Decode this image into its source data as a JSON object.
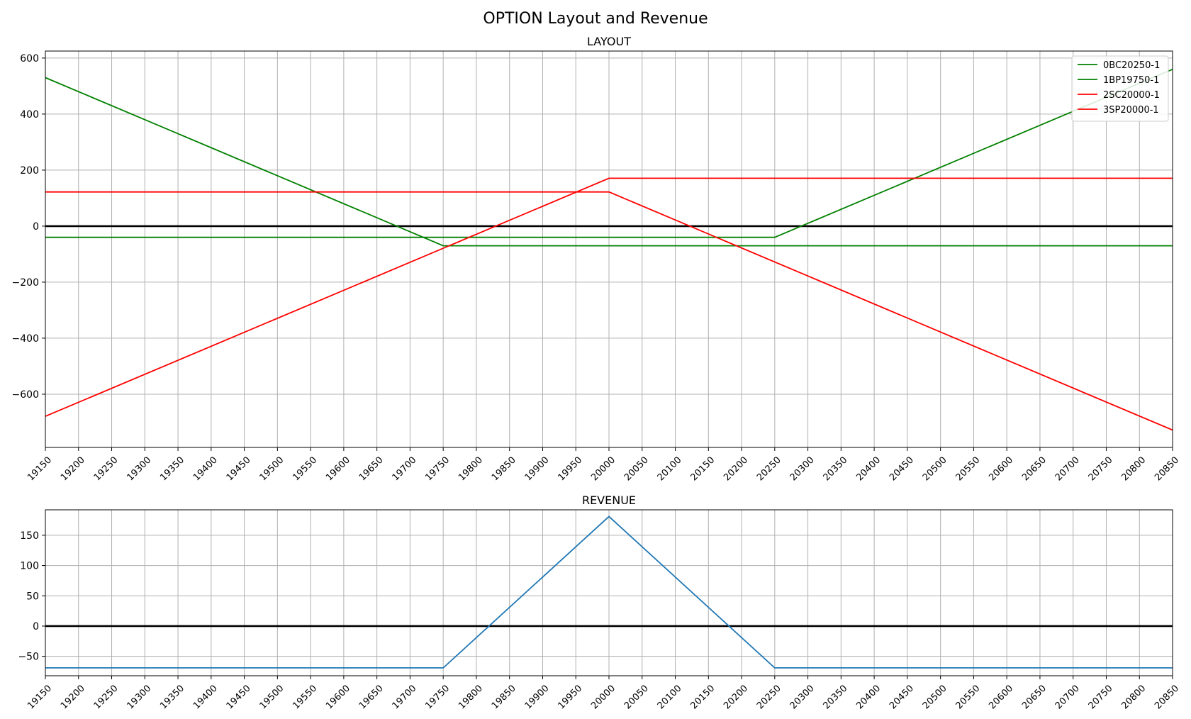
{
  "figure": {
    "title": "OPTION Layout and Revenue"
  },
  "chart_data": [
    {
      "type": "line",
      "title": "LAYOUT",
      "xlabel": "",
      "ylabel": "",
      "xlim": [
        19150,
        20850
      ],
      "ylim": [
        -790,
        625
      ],
      "grid": true,
      "legend": "top-right",
      "x_ticks": [
        19150,
        19200,
        19250,
        19300,
        19350,
        19400,
        19450,
        19500,
        19550,
        19600,
        19650,
        19700,
        19750,
        19800,
        19850,
        19900,
        19950,
        20000,
        20050,
        20100,
        20150,
        20200,
        20250,
        20300,
        20350,
        20400,
        20450,
        20500,
        20550,
        20600,
        20650,
        20700,
        20750,
        20800,
        20850
      ],
      "y_ticks": [
        -600,
        -400,
        -200,
        0,
        200,
        400,
        600
      ],
      "y_tick_labels": [
        "−600",
        "−400",
        "−200",
        "0",
        "200",
        "400",
        "600"
      ],
      "baseline": 0,
      "series": [
        {
          "name": "0BC20250-1",
          "color": "#008000",
          "x": [
            19150,
            20250,
            20850
          ],
          "y": [
            -40,
            -40,
            560
          ]
        },
        {
          "name": "1BP19750-1",
          "color": "#008000",
          "x": [
            19150,
            19750,
            20850
          ],
          "y": [
            530,
            -70,
            -70
          ]
        },
        {
          "name": "2SC20000-1",
          "color": "#ff0000",
          "x": [
            19150,
            20000,
            20850
          ],
          "y": [
            122,
            122,
            -728
          ]
        },
        {
          "name": "3SP20000-1",
          "color": "#ff0000",
          "x": [
            19150,
            20000,
            20850
          ],
          "y": [
            -679,
            171,
            171
          ]
        }
      ]
    },
    {
      "type": "line",
      "title": "REVENUE",
      "xlabel": "",
      "ylabel": "",
      "xlim": [
        19150,
        20850
      ],
      "ylim": [
        -82,
        192
      ],
      "grid": true,
      "x_ticks": [
        19150,
        19200,
        19250,
        19300,
        19350,
        19400,
        19450,
        19500,
        19550,
        19600,
        19650,
        19700,
        19750,
        19800,
        19850,
        19900,
        19950,
        20000,
        20050,
        20100,
        20150,
        20200,
        20250,
        20300,
        20350,
        20400,
        20450,
        20500,
        20550,
        20600,
        20650,
        20700,
        20750,
        20800,
        20850
      ],
      "y_ticks": [
        -50,
        0,
        50,
        100,
        150
      ],
      "y_tick_labels": [
        "−50",
        "0",
        "50",
        "100",
        "150"
      ],
      "baseline": 0,
      "series": [
        {
          "color": "#1f77b4",
          "x": [
            19150,
            19750,
            20000,
            20250,
            20850
          ],
          "y": [
            -69,
            -69,
            181,
            -69,
            -69
          ]
        }
      ]
    }
  ]
}
